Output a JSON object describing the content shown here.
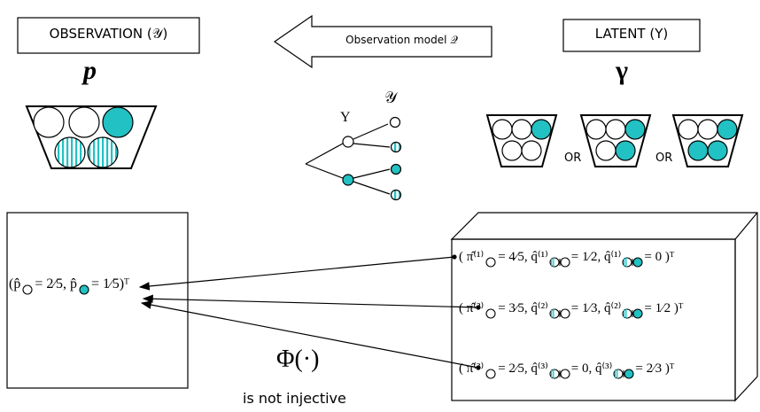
{
  "observation_label": "OBSERVATION (𝒴)",
  "model_label": "Observation model 𝒬",
  "latent_label": "LATENT (Y)",
  "p_symbol": "p",
  "gamma_symbol": "γ",
  "tree": {
    "root_label": "Y",
    "leaf_label": "𝒴"
  },
  "or_labels": [
    "OR",
    "OR"
  ],
  "observed_vector": [
    "(p̂",
    "= 2⁄5, p̂",
    "= 1⁄5)ᵀ"
  ],
  "latent_vectors": [
    [
      "( π̂⁽¹⁾",
      "= 4⁄5, q̂⁽¹⁾",
      "= 1⁄2, q̂⁽¹⁾",
      "= 0 )ᵀ"
    ],
    [
      "( π̂⁽²⁾",
      "= 3⁄5, q̂⁽²⁾",
      "= 1⁄3, q̂⁽²⁾",
      "= 1⁄2 )ᵀ"
    ],
    [
      "( π̂⁽³⁾",
      "= 2⁄5, q̂⁽³⁾",
      "= 0, q̂⁽³⁾",
      "= 2⁄3 )ᵀ"
    ]
  ],
  "map_symbol": "Φ(·)",
  "map_note": "is not injective"
}
